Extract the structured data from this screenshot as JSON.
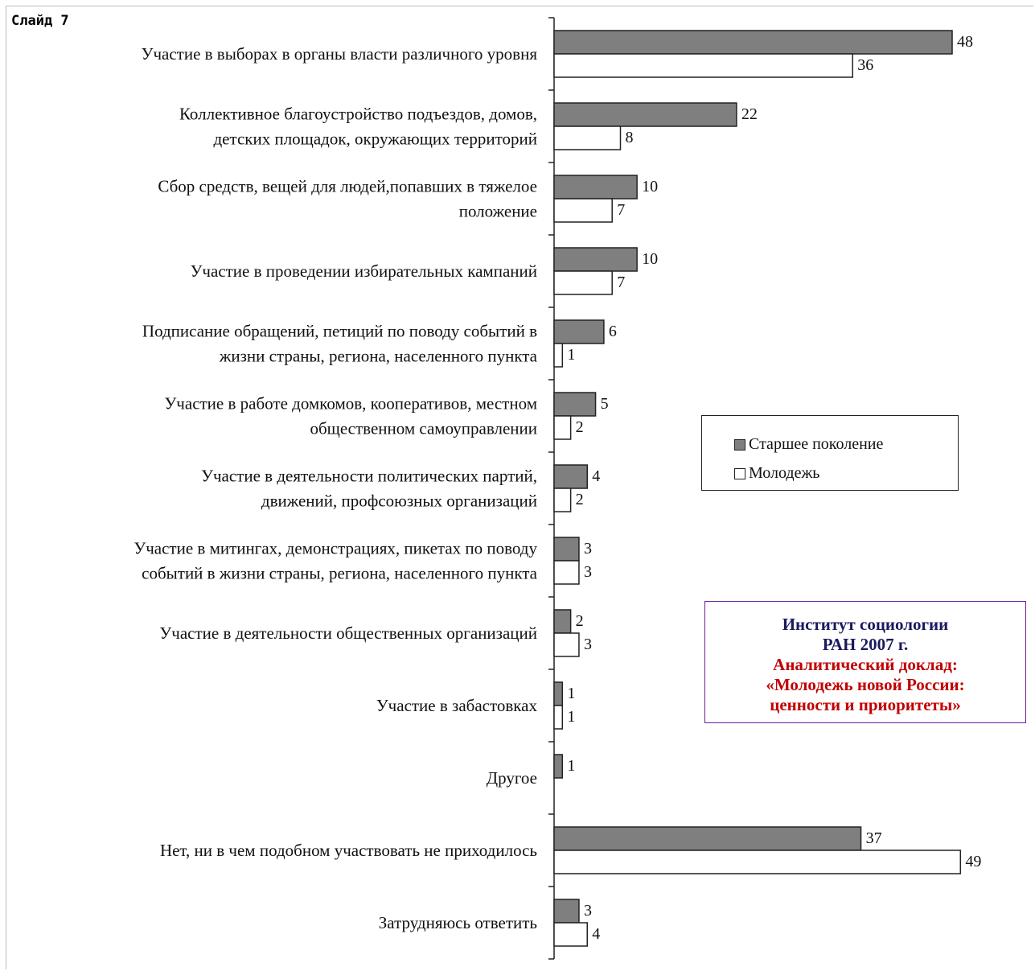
{
  "slide_label": "Слайд 7",
  "colors": {
    "older": "#7f7f7f",
    "youth": "#ffffff",
    "source_title": "#1a1a5e",
    "source_report": "#c00000",
    "source_border": "#6a1b9a"
  },
  "legend": {
    "older": "Старшее поколение",
    "youth": "Молодежь"
  },
  "source": {
    "line1": "Институт социологии",
    "line2": "РАН 2007 г.",
    "line3": "Аналитический доклад:",
    "line4": "«Молодежь новой России:",
    "line5": "ценности и приоритеты»"
  },
  "chart_data": {
    "type": "bar",
    "orientation": "horizontal",
    "categories": [
      [
        "Участие в выборах в органы власти различного уровня"
      ],
      [
        "Коллективное благоустройство подъездов, домов,",
        "детских площадок, окружающих территорий"
      ],
      [
        "Сбор средств, вещей для людей,попавших в тяжелое",
        "положение"
      ],
      [
        "Участие в проведении избирательных кампаний"
      ],
      [
        "Подписание обращений, петиций по поводу событий в",
        "жизни страны, региона, населенного пункта"
      ],
      [
        "Участие в работе домкомов, кооперативов, местном",
        "общественном самоуправлении"
      ],
      [
        "Участие в деятельности политических партий,",
        "движений, профсоюзных организаций"
      ],
      [
        "Участие в митингах, демонстрациях, пикетах по поводу",
        "событий в жизни страны, региона, населенного пункта"
      ],
      [
        "Участие в деятельности общественных организаций"
      ],
      [
        "Участие в забастовках"
      ],
      [
        "Другое"
      ],
      [
        "Нет, ни в чем подобном участвовать не приходилось"
      ],
      [
        "Затрудняюсь ответить"
      ]
    ],
    "series": [
      {
        "name": "Старшее поколение",
        "values": [
          48,
          22,
          10,
          10,
          6,
          5,
          4,
          3,
          2,
          1,
          1,
          37,
          3
        ]
      },
      {
        "name": "Молодежь",
        "values": [
          36,
          8,
          7,
          7,
          1,
          2,
          2,
          3,
          3,
          1,
          null,
          49,
          4
        ]
      }
    ],
    "xlim": [
      0,
      50
    ],
    "legend_position": "right",
    "grid": false
  }
}
